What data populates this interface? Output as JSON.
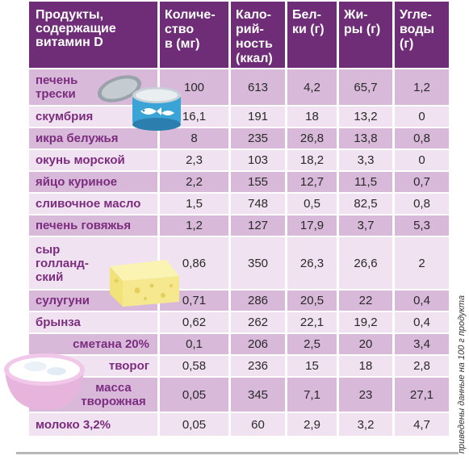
{
  "table": {
    "headers": [
      "Продукты,\nсодержащие\nвитамин D",
      "Количе-\nство\nв (мг)",
      "Кало-\nрий-\nность\n(ккал)",
      "Бел-\nки (г)",
      "Жи-\nры (г)",
      "Угле-\nводы\n(г)"
    ],
    "rows": [
      {
        "name": "печень\nтрески",
        "amount": "100",
        "kcal": "613",
        "protein": "4,2",
        "fat": "65,7",
        "carbs": "1,2"
      },
      {
        "name": "скумбрия",
        "amount": "16,1",
        "kcal": "191",
        "protein": "18",
        "fat": "13,2",
        "carbs": "0"
      },
      {
        "name": "икра белужья",
        "amount": "8",
        "kcal": "235",
        "protein": "26,8",
        "fat": "13,8",
        "carbs": "0,8"
      },
      {
        "name": "окунь морской",
        "amount": "2,3",
        "kcal": "103",
        "protein": "18,2",
        "fat": "3,3",
        "carbs": "0"
      },
      {
        "name": "яйцо куриное",
        "amount": "2,2",
        "kcal": "155",
        "protein": "12,7",
        "fat": "11,5",
        "carbs": "0,7"
      },
      {
        "name": "сливочное масло",
        "amount": "1,5",
        "kcal": "748",
        "protein": "0,5",
        "fat": "82,5",
        "carbs": "0,8"
      },
      {
        "name": "печень говяжья",
        "amount": "1,2",
        "kcal": "127",
        "protein": "17,9",
        "fat": "3,7",
        "carbs": "5,3"
      },
      {
        "name": "сыр\nголланд-\nский",
        "amount": "0,86",
        "kcal": "350",
        "protein": "26,3",
        "fat": "26,6",
        "carbs": "2"
      },
      {
        "name": "сулугуни",
        "amount": "0,71",
        "kcal": "286",
        "protein": "20,5",
        "fat": "22",
        "carbs": "0,4"
      },
      {
        "name": "брынза",
        "amount": "0,62",
        "kcal": "262",
        "protein": "22,1",
        "fat": "19,2",
        "carbs": "0,4"
      },
      {
        "name": "сметана 20%",
        "amount": "0,1",
        "kcal": "206",
        "protein": "2,5",
        "fat": "20",
        "carbs": "3,4"
      },
      {
        "name": "творог",
        "amount": "0,58",
        "kcal": "236",
        "protein": "15",
        "fat": "18",
        "carbs": "2,8"
      },
      {
        "name": "масса\nтворожная",
        "amount": "0,05",
        "kcal": "345",
        "protein": "7,1",
        "fat": "23",
        "carbs": "27,1"
      },
      {
        "name": "молоко 3,2%",
        "amount": "0,05",
        "kcal": "60",
        "protein": "2,9",
        "fat": "3,2",
        "carbs": "4,7"
      }
    ]
  },
  "note": "приведены данные на 100 г продукта",
  "colors": {
    "header": "#6f2d77",
    "row_dark": "#d8b9da",
    "row_light": "#f0e2f0",
    "name_text": "#7b2c7e"
  },
  "illustrations": [
    "fish-can-icon",
    "cheese-icon",
    "sour-cream-bowl-icon"
  ]
}
